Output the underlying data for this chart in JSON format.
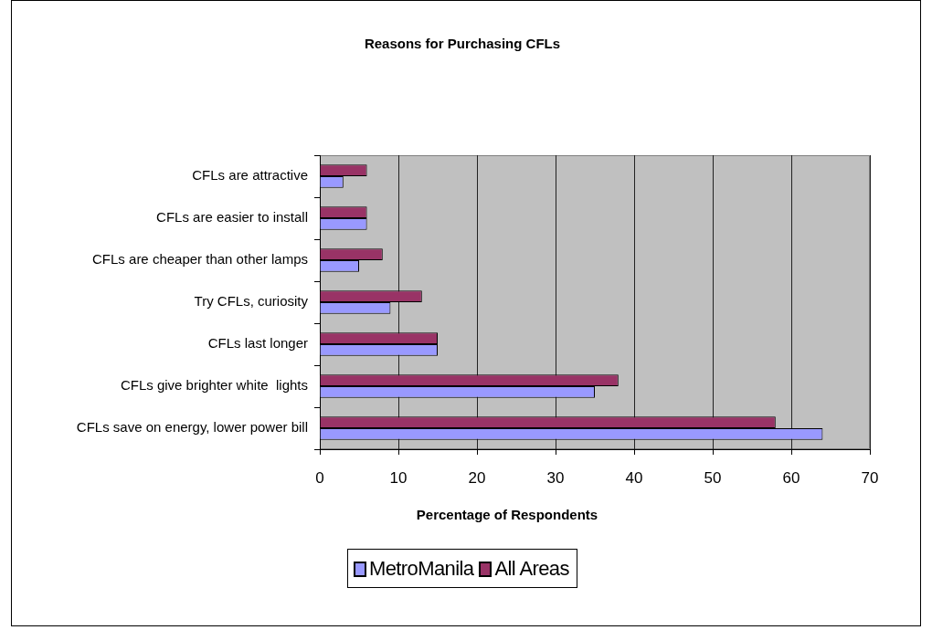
{
  "chart_data": {
    "type": "bar",
    "title": "Reasons for Purchasing CFLs",
    "xlabel": "Percentage of Respondents",
    "orientation": "horizontal",
    "categories": [
      "CFLs are attractive",
      "CFLs are easier to install",
      "CFLs are cheaper than other lamps",
      "Try CFLs, curiosity",
      "CFLs last longer",
      "CFLs give brighter white  lights",
      "CFLs save on energy, lower power bill"
    ],
    "series": [
      {
        "name": "MetroManila",
        "color": "#9999ff",
        "values": [
          3,
          6,
          5,
          9,
          15,
          35,
          64
        ]
      },
      {
        "name": "All Areas",
        "color": "#993366",
        "values": [
          6,
          6,
          8,
          13,
          15,
          38,
          58
        ]
      }
    ],
    "xlim": [
      0,
      70
    ],
    "xticks": [
      0,
      10,
      20,
      30,
      40,
      50,
      60,
      70
    ],
    "grid": "x",
    "legend": "bottom"
  }
}
